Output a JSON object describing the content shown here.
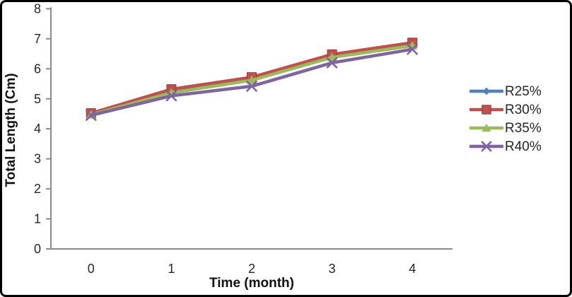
{
  "chart_data": {
    "type": "line",
    "title": "",
    "xlabel": "Time (month)",
    "ylabel": "Total Length (Cm)",
    "x_categories": [
      "0",
      "1",
      "2",
      "3",
      "4"
    ],
    "y_ticks": [
      "0",
      "1",
      "2",
      "3",
      "4",
      "5",
      "6",
      "7",
      "8"
    ],
    "ylim": [
      0,
      8
    ],
    "grid": false,
    "legend_position": "right",
    "axis_color": "#8a8a8a",
    "text_color": "#262626",
    "series": [
      {
        "name": "R25%",
        "color": "#4F81BD",
        "marker": "diamond",
        "values": [
          4.5,
          5.25,
          5.65,
          6.4,
          6.8
        ]
      },
      {
        "name": "R30%",
        "color": "#C0504D",
        "marker": "square",
        "values": [
          4.52,
          5.32,
          5.72,
          6.48,
          6.87
        ]
      },
      {
        "name": "R35%",
        "color": "#9BBB59",
        "marker": "triangle",
        "values": [
          4.47,
          5.2,
          5.62,
          6.38,
          6.77
        ]
      },
      {
        "name": "R40%",
        "color": "#8064A2",
        "marker": "x",
        "values": [
          4.45,
          5.1,
          5.42,
          6.2,
          6.65
        ]
      }
    ]
  }
}
